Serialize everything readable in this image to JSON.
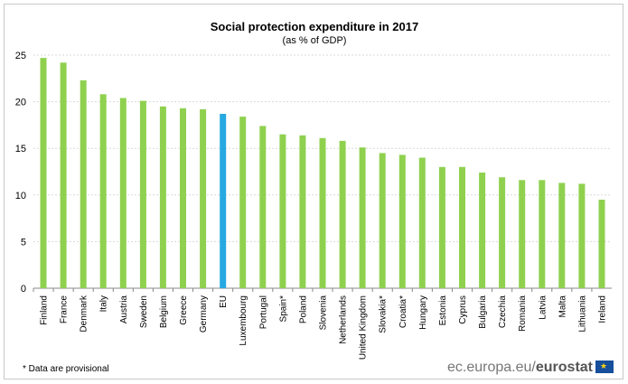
{
  "chart_data": {
    "type": "bar",
    "title": "Social protection expenditure in 2017",
    "subtitle": "(as % of GDP)",
    "xlabel": "",
    "ylabel": "",
    "ylim": [
      0,
      25
    ],
    "yticks": [
      0,
      5,
      10,
      15,
      20,
      25
    ],
    "grid": true,
    "categories": [
      "Finland",
      "France",
      "Denmark",
      "Italy",
      "Austria",
      "Sweden",
      "Belgium",
      "Greece",
      "Germany",
      "EU",
      "Luxembourg",
      "Portugal",
      "Spain*",
      "Poland",
      "Slovenia",
      "Netherlands",
      "United Kingdom",
      "Slovakia*",
      "Croatia*",
      "Hungary",
      "Estonia",
      "Cyprus",
      "Bulgaria",
      "Czechia",
      "Romania",
      "Latvia",
      "Malta",
      "Lithuania",
      "Ireland"
    ],
    "values": [
      24.7,
      24.2,
      22.3,
      20.8,
      20.4,
      20.1,
      19.5,
      19.3,
      19.2,
      18.7,
      18.4,
      17.4,
      16.5,
      16.4,
      16.1,
      15.8,
      15.1,
      14.5,
      14.3,
      14.0,
      13.0,
      13.0,
      12.4,
      11.9,
      11.6,
      11.6,
      11.3,
      11.2,
      9.5
    ],
    "highlight_category": "EU",
    "colors": {
      "bar": "#8fd14f",
      "highlight": "#26a9e0"
    }
  },
  "footnote": "* Data are provisional",
  "source": {
    "domain": "ec.europa.eu/",
    "brand": "eurostat"
  }
}
